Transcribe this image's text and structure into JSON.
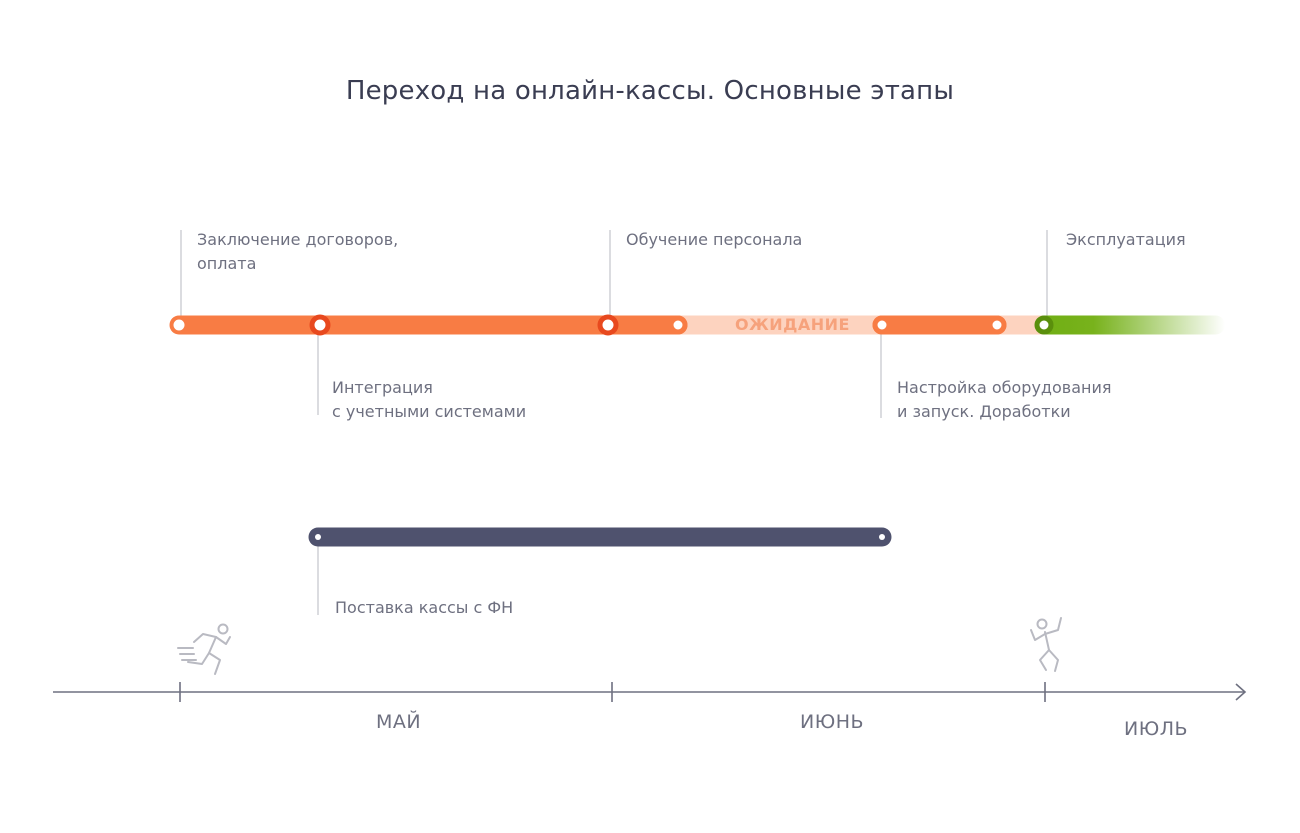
{
  "title": "Переход на онлайн-кассы. Основные этапы",
  "colors": {
    "orange": "#f87c44",
    "orange_dark": "#e8491e",
    "pale_orange": "#fdd3bf",
    "green": "#6fae13",
    "navy": "#4f526e",
    "axis": "#6e7080",
    "label": "#6e7080"
  },
  "stages_top": [
    {
      "line1": "Заключение договоров,",
      "line2": "оплата"
    },
    {
      "line1": "Обучение персонала"
    },
    {
      "line1": "Эксплуатация"
    }
  ],
  "stages_bottom": [
    {
      "line1": "Интеграция",
      "line2": "с учетными системами"
    },
    {
      "line1": "Настройка оборудования",
      "line2": "и запуск. Доработки"
    }
  ],
  "waiting_label": "ОЖИДАНИЕ",
  "delivery_label": "Поставка кассы с ФН",
  "months": [
    "МАЙ",
    "ИЮНЬ",
    "ИЮЛЬ"
  ],
  "icons": [
    "running-person-icon",
    "celebrating-person-icon"
  ]
}
